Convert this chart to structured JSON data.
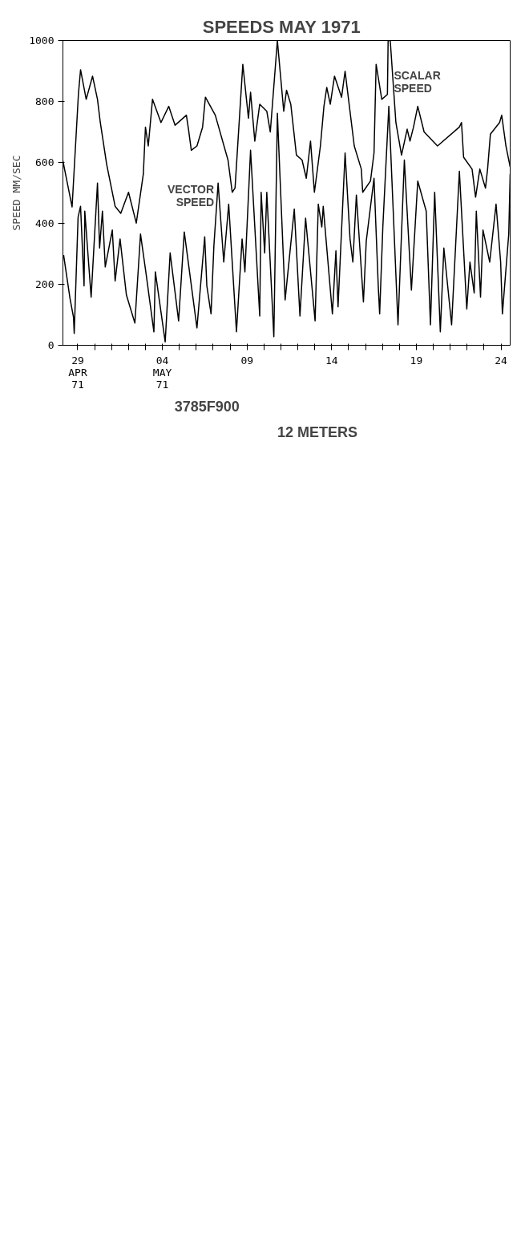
{
  "chart_data": {
    "type": "line",
    "title": "SPEEDS   MAY 1971",
    "ylabel": "SPEED MM/SEC",
    "xlim": [
      "1971-04-28T03:00",
      "1971-05-24T13:00"
    ],
    "xticks": [
      {
        "value": "1971-04-29",
        "label": "29\nAPR\n71"
      },
      {
        "value": "1971-04-30",
        "label": null
      },
      {
        "value": "1971-05-01",
        "label": null
      },
      {
        "value": "1971-05-02",
        "label": null
      },
      {
        "value": "1971-05-03",
        "label": null
      },
      {
        "value": "1971-05-04",
        "label": "04\nMAY\n71"
      },
      {
        "value": "1971-05-05",
        "label": null
      },
      {
        "value": "1971-05-06",
        "label": null
      },
      {
        "value": "1971-05-07",
        "label": null
      },
      {
        "value": "1971-05-08",
        "label": null
      },
      {
        "value": "1971-05-09",
        "label": "09"
      },
      {
        "value": "1971-05-10",
        "label": null
      },
      {
        "value": "1971-05-11",
        "label": null
      },
      {
        "value": "1971-05-12",
        "label": null
      },
      {
        "value": "1971-05-13",
        "label": null
      },
      {
        "value": "1971-05-14",
        "label": "14"
      },
      {
        "value": "1971-05-15",
        "label": null
      },
      {
        "value": "1971-05-16",
        "label": null
      },
      {
        "value": "1971-05-17",
        "label": null
      },
      {
        "value": "1971-05-18",
        "label": null
      },
      {
        "value": "1971-05-19",
        "label": "19"
      },
      {
        "value": "1971-05-20",
        "label": null
      },
      {
        "value": "1971-05-21",
        "label": null
      },
      {
        "value": "1971-05-22",
        "label": null
      },
      {
        "value": "1971-05-23",
        "label": null
      },
      {
        "value": "1971-05-24",
        "label": "24"
      }
    ],
    "ylim": [
      0,
      1000
    ],
    "yticks": [
      0,
      200,
      400,
      600,
      800,
      1000
    ],
    "grid": false,
    "line_style": "solid",
    "annotations": [
      "3785F900",
      "12 METERS"
    ],
    "series": [
      {
        "name": "SCALAR SPEED",
        "color": "#000000",
        "x": [
          "1971-04-28T03:00",
          "1971-04-28T16:00",
          "1971-04-29T01:00",
          "1971-04-29T04:00",
          "1971-04-29T12:00",
          "1971-04-29T21:00",
          "1971-04-30T04:00",
          "1971-04-30T08:00",
          "1971-04-30T17:00",
          "1971-05-01T05:00",
          "1971-05-01T13:00",
          "1971-05-02T00:00",
          "1971-05-02T11:00",
          "1971-05-02T21:00",
          "1971-05-03T00:00",
          "1971-05-03T04:00",
          "1971-05-03T10:00",
          "1971-05-03T22:00",
          "1971-05-04T09:00",
          "1971-05-04T18:00",
          "1971-05-05T10:00",
          "1971-05-05T13:00",
          "1971-05-05T17:00",
          "1971-05-06T01:00",
          "1971-05-06T09:00",
          "1971-05-06T13:00",
          "1971-05-07T03:00",
          "1971-05-07T21:00",
          "1971-05-08T03:00",
          "1971-05-08T07:00",
          "1971-05-08T18:00",
          "1971-05-09T02:00",
          "1971-05-09T05:00",
          "1971-05-09T11:00",
          "1971-05-09T14:00",
          "1971-05-09T18:00",
          "1971-05-10T04:00",
          "1971-05-10T09:00",
          "1971-05-10T19:00",
          "1971-05-11T04:00",
          "1971-05-11T08:00",
          "1971-05-11T14:00",
          "1971-05-11T22:00",
          "1971-05-12T06:00",
          "1971-05-12T12:00",
          "1971-05-12T18:00",
          "1971-05-12T23:30",
          "1971-05-13T08:00",
          "1971-05-13T13:00",
          "1971-05-13T17:00",
          "1971-05-13T22:00",
          "1971-05-14T04:00",
          "1971-05-14T14:00",
          "1971-05-14T19:00",
          "1971-05-15T08:00",
          "1971-05-15T18:00",
          "1971-05-15T20:00",
          "1971-05-16T07:00",
          "1971-05-16T12:00",
          "1971-05-16T15:00",
          "1971-05-16T23:00",
          "1971-05-17T07:00",
          "1971-05-17T08:00",
          "1971-05-17T11:00",
          "1971-05-17T19:00",
          "1971-05-18T03:00",
          "1971-05-18T11:00",
          "1971-05-18T15:00",
          "1971-05-18T20:00",
          "1971-05-19T02:00",
          "1971-05-19T11:00",
          "1971-05-20T06:00",
          "1971-05-21T13:00",
          "1971-05-21T16:00",
          "1971-05-21T19:00",
          "1971-05-22T07:00",
          "1971-05-22T12:00",
          "1971-05-22T18:00",
          "1971-05-23T02:00",
          "1971-05-23T05:00",
          "1971-05-23T09:00",
          "1971-05-23T22:00",
          "1971-05-24T01:00",
          "1971-05-24T07:00",
          "1971-05-24T13:00"
        ],
        "values": [
          605,
          454,
          825,
          904,
          807,
          883,
          807,
          731,
          594,
          456,
          433,
          502,
          401,
          562,
          716,
          654,
          807,
          731,
          784,
          722,
          755,
          709,
          640,
          654,
          716,
          814,
          755,
          608,
          502,
          516,
          922,
          745,
          830,
          670,
          722,
          791,
          768,
          700,
          1000,
          768,
          837,
          791,
          624,
          608,
          548,
          670,
          502,
          654,
          784,
          846,
          791,
          883,
          814,
          899,
          654,
          578,
          502,
          539,
          631,
          922,
          807,
          823,
          1000,
          1000,
          731,
          624,
          709,
          670,
          716,
          784,
          700,
          654,
          716,
          731,
          617,
          578,
          486,
          578,
          516,
          578,
          693,
          731,
          755,
          654,
          585
        ]
      },
      {
        "name": "VECTOR SPEED",
        "color": "#000000",
        "x": [
          "1971-04-28T04:00",
          "1971-04-28T13:00",
          "1971-04-28T18:00",
          "1971-04-28T19:00",
          "1971-04-29T00:30",
          "1971-04-29T04:00",
          "1971-04-29T09:00",
          "1971-04-29T10:00",
          "1971-04-29T19:00",
          "1971-04-30T04:00",
          "1971-04-30T07:00",
          "1971-04-30T11:00",
          "1971-04-30T15:00",
          "1971-05-01T01:00",
          "1971-05-01T05:00",
          "1971-05-01T12:00",
          "1971-05-01T21:00",
          "1971-05-02T09:00",
          "1971-05-02T17:00",
          "1971-05-03T00:30",
          "1971-05-03T12:00",
          "1971-05-03T14:00",
          "1971-05-04T04:00",
          "1971-05-04T11:00",
          "1971-05-04T23:00",
          "1971-05-05T07:00",
          "1971-05-06T01:00",
          "1971-05-06T12:00",
          "1971-05-06T15:00",
          "1971-05-06T21:00",
          "1971-05-07T01:00",
          "1971-05-07T07:00",
          "1971-05-07T15:00",
          "1971-05-07T22:00",
          "1971-05-08T09:00",
          "1971-05-08T17:00",
          "1971-05-08T21:00",
          "1971-05-09T05:00",
          "1971-05-09T18:00",
          "1971-05-09T20:00",
          "1971-05-10T01:00",
          "1971-05-10T04:00",
          "1971-05-10T14:00",
          "1971-05-10T19:00",
          "1971-05-11T06:00",
          "1971-05-11T19:00",
          "1971-05-12T03:00",
          "1971-05-12T11:00",
          "1971-05-13T00:30",
          "1971-05-13T05:00",
          "1971-05-13T10:00",
          "1971-05-13T12:00",
          "1971-05-14T01:00",
          "1971-05-14T06:00",
          "1971-05-14T09:00",
          "1971-05-14T19:00",
          "1971-05-15T02:00",
          "1971-05-15T06:00",
          "1971-05-15T11:00",
          "1971-05-15T21:00",
          "1971-05-16T01:00",
          "1971-05-16T12:00",
          "1971-05-16T18:00",
          "1971-05-16T20:00",
          "1971-05-17T00:30",
          "1971-05-17T09:00",
          "1971-05-17T22:00",
          "1971-05-18T07:00",
          "1971-05-18T17:00",
          "1971-05-19T02:00",
          "1971-05-19T14:00",
          "1971-05-19T20:00",
          "1971-05-20T02:00",
          "1971-05-20T10:00",
          "1971-05-20T15:00",
          "1971-05-21T02:00",
          "1971-05-21T13:00",
          "1971-05-21T23:30",
          "1971-05-22T04:00",
          "1971-05-22T10:00",
          "1971-05-22T13:00",
          "1971-05-22T19:00",
          "1971-05-22T22:30",
          "1971-05-23T08:00",
          "1971-05-23T17:00",
          "1971-05-23T23:30",
          "1971-05-24T02:00",
          "1971-05-24T11:00",
          "1971-05-24T13:00"
        ],
        "values": [
          296,
          154,
          92,
          39,
          420,
          456,
          195,
          440,
          158,
          532,
          319,
          440,
          257,
          378,
          211,
          349,
          165,
          73,
          365,
          241,
          44,
          241,
          11,
          303,
          80,
          372,
          57,
          356,
          195,
          103,
          326,
          532,
          273,
          463,
          44,
          349,
          241,
          640,
          96,
          502,
          303,
          502,
          28,
          761,
          149,
          447,
          96,
          417,
          80,
          463,
          388,
          456,
          103,
          310,
          126,
          631,
          349,
          273,
          493,
          142,
          342,
          548,
          195,
          103,
          388,
          784,
          67,
          608,
          181,
          539,
          440,
          67,
          502,
          44,
          319,
          67,
          571,
          119,
          273,
          172,
          440,
          158,
          378,
          273,
          463,
          273,
          103,
          365,
          562
        ]
      }
    ]
  }
}
